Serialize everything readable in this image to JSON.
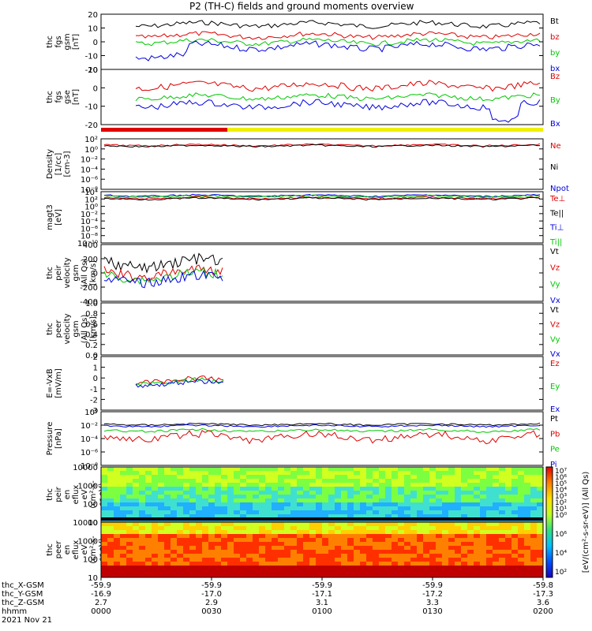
{
  "title": "P2 (TH-C) fields and ground moments overview",
  "colors": {
    "black": "#000000",
    "red": "#dd0000",
    "green": "#00c800",
    "blue": "#0000e0"
  },
  "chart_data": [
    {
      "type": "line",
      "panel": "fgs-gsm",
      "ylabel": [
        "thc",
        "fgs",
        "gsm",
        "[nT]"
      ],
      "ylim": [
        -20,
        20
      ],
      "yticks": [
        "20",
        "10",
        "0",
        "-10",
        "-20"
      ],
      "series": [
        {
          "name": "Bt",
          "color": "#000000"
        },
        {
          "name": "bz",
          "color": "#dd0000"
        },
        {
          "name": "by",
          "color": "#00c800"
        },
        {
          "name": "bx",
          "color": "#0000e0"
        }
      ]
    },
    {
      "type": "line",
      "panel": "fgs-gse",
      "ylabel": [
        "thc",
        "fgs",
        "gse",
        "[nT]"
      ],
      "ylim": [
        -25,
        12
      ],
      "yticks": [
        "10",
        "0",
        "-10",
        "-20"
      ],
      "series": [
        {
          "name": "Bz",
          "color": "#dd0000"
        },
        {
          "name": "By",
          "color": "#00c800"
        },
        {
          "name": "Bx",
          "color": "#0000e0"
        }
      ]
    },
    {
      "type": "line",
      "panel": "density",
      "ylabel": [
        "Density",
        "[1/cc]",
        "[cm-3]"
      ],
      "log": true,
      "yticks": [
        "10²",
        "10⁰",
        "10⁻²",
        "10⁻⁴",
        "10⁻⁶",
        "10⁻⁸"
      ],
      "series": [
        {
          "name": "Ne",
          "color": "#dd0000"
        },
        {
          "name": "Ni",
          "color": "#000000"
        },
        {
          "name": "Npot",
          "color": "#0000e0"
        }
      ]
    },
    {
      "type": "line",
      "panel": "temperature",
      "ylabel": [
        "magt3",
        "[eV]"
      ],
      "log": true,
      "yticks": [
        "10⁴",
        "10²",
        "10⁰",
        "10⁻²",
        "10⁻⁴",
        "10⁻⁶",
        "10⁻⁸",
        "10⁻¹⁰"
      ],
      "series": [
        {
          "name": "Te⊥",
          "color": "#dd0000"
        },
        {
          "name": "Te||",
          "color": "#000000"
        },
        {
          "name": "Ti⊥",
          "color": "#0000e0"
        },
        {
          "name": "Ti||",
          "color": "#00c800"
        }
      ]
    },
    {
      "type": "line",
      "panel": "peir-velocity",
      "ylabel": [
        "thc",
        "peir",
        "velocity",
        "gsm",
        "(All Qs)",
        "[km/s]"
      ],
      "ylim": [
        -400,
        400
      ],
      "yticks": [
        "400",
        "200",
        "0",
        "-200",
        "-400"
      ],
      "series": [
        {
          "name": "Vt",
          "color": "#000000"
        },
        {
          "name": "Vz",
          "color": "#dd0000"
        },
        {
          "name": "Vy",
          "color": "#00c800"
        },
        {
          "name": "Vx",
          "color": "#0000e0"
        }
      ]
    },
    {
      "type": "line",
      "panel": "peer-velocity",
      "ylabel": [
        "thc",
        "peer",
        "velocity",
        "gsm",
        "(All Qs)",
        "[km/s]"
      ],
      "ylim": [
        0,
        1
      ],
      "yticks": [
        "1.0",
        "0.8",
        "0.6",
        "0.4",
        "0.2",
        "0.0"
      ],
      "series": [
        {
          "name": "Vt",
          "color": "#000000"
        },
        {
          "name": "Vz",
          "color": "#dd0000"
        },
        {
          "name": "Vy",
          "color": "#00c800"
        },
        {
          "name": "Vx",
          "color": "#0000e0"
        }
      ]
    },
    {
      "type": "line",
      "panel": "efield",
      "ylabel": [
        "E=-VxB",
        "[mV/m]"
      ],
      "ylim": [
        -3,
        2
      ],
      "yticks": [
        "2",
        "1",
        "0",
        "-1",
        "-2",
        "-3"
      ],
      "series": [
        {
          "name": "Ez",
          "color": "#dd0000"
        },
        {
          "name": "Ey",
          "color": "#00c800"
        },
        {
          "name": "Ex",
          "color": "#0000e0"
        }
      ]
    },
    {
      "type": "line",
      "panel": "pressure",
      "ylabel": [
        "Pressure",
        "[nPa]"
      ],
      "log": true,
      "yticks": [
        "10⁰",
        "10⁻²",
        "10⁻⁴",
        "10⁻⁶",
        "10⁻⁸"
      ],
      "series": [
        {
          "name": "Pt",
          "color": "#000000"
        },
        {
          "name": "Pb",
          "color": "#dd0000"
        },
        {
          "name": "Pe",
          "color": "#00c800"
        },
        {
          "name": "Pi",
          "color": "#0000e0"
        }
      ]
    },
    {
      "type": "heatmap",
      "panel": "peir-spectrogram",
      "ylabel": [
        "thc",
        "peir",
        "en",
        "eflux",
        "eV",
        "(cm²-s-",
        "sr-eV)"
      ],
      "yticks": [
        "10000",
        "1000",
        "100",
        "10"
      ]
    },
    {
      "type": "heatmap",
      "panel": "peer-spectrogram",
      "ylabel": [
        "thc",
        "peer",
        "en",
        "eflux",
        "eV",
        "(cm²-s-",
        "sr-eV)"
      ],
      "yticks": [
        "10000",
        "1000",
        "100",
        "10"
      ]
    }
  ],
  "colorbar": {
    "label": "[eV/(cm²-s-sr-eV)] (All Qs)",
    "ticks_top": [
      "10⁷",
      "10⁶",
      "10⁵",
      "10⁴",
      "10³",
      "10²",
      "10¹",
      "10⁰"
    ],
    "ticks_bottom": [
      "10⁶",
      "10⁴",
      "10²"
    ]
  },
  "xaxis": {
    "rows": [
      {
        "label": "thc_X-GSM",
        "values": [
          "-59.9",
          "-59.9",
          "-59.9",
          "-59.9",
          "-59.8"
        ]
      },
      {
        "label": "thc_Y-GSM",
        "values": [
          "-16.9",
          "-17.0",
          "-17.1",
          "-17.2",
          "-17.3"
        ]
      },
      {
        "label": "thc_Z-GSM",
        "values": [
          "2.7",
          "2.9",
          "3.1",
          "3.3",
          "3.6"
        ]
      },
      {
        "label": "hhmm",
        "values": [
          "0000",
          "0030",
          "0100",
          "0130",
          "0200"
        ]
      }
    ],
    "date": "2021 Nov 21"
  }
}
